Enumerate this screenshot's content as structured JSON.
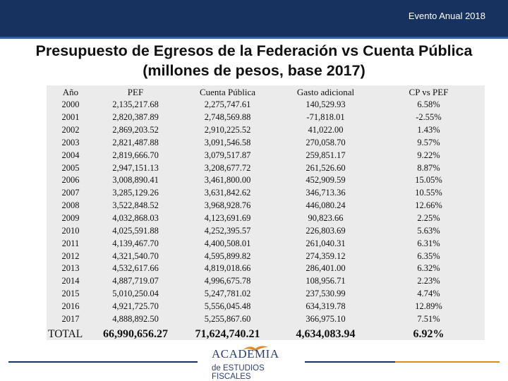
{
  "header": {
    "event_label": "Evento Anual 2018",
    "title_line1": "Presupuesto de Egresos de la Federación vs Cuenta Pública",
    "title_line2": "(millones de pesos, base 2017)"
  },
  "table": {
    "columns": [
      "Año",
      "PEF",
      "Cuenta Pública",
      "Gasto adicional",
      "CP vs PEF"
    ],
    "rows": [
      [
        "2000",
        "2,135,217.68",
        "2,275,747.61",
        "140,529.93",
        "6.58%"
      ],
      [
        "2001",
        "2,820,387.89",
        "2,748,569.88",
        "-71,818.01",
        "-2.55%"
      ],
      [
        "2002",
        "2,869,203.52",
        "2,910,225.52",
        "41,022.00",
        "1.43%"
      ],
      [
        "2003",
        "2,821,487.88",
        "3,091,546.58",
        "270,058.70",
        "9.57%"
      ],
      [
        "2004",
        "2,819,666.70",
        "3,079,517.87",
        "259,851.17",
        "9.22%"
      ],
      [
        "2005",
        "2,947,151.13",
        "3,208,677.72",
        "261,526.60",
        "8.87%"
      ],
      [
        "2006",
        "3,008,890.41",
        "3,461,800.00",
        "452,909.59",
        "15.05%"
      ],
      [
        "2007",
        "3,285,129.26",
        "3,631,842.62",
        "346,713.36",
        "10.55%"
      ],
      [
        "2008",
        "3,522,848.52",
        "3,968,928.76",
        "446,080.24",
        "12.66%"
      ],
      [
        "2009",
        "4,032,868.03",
        "4,123,691.69",
        "90,823.66",
        "2.25%"
      ],
      [
        "2010",
        "4,025,591.88",
        "4,252,395.57",
        "226,803.69",
        "5.63%"
      ],
      [
        "2011",
        "4,139,467.70",
        "4,400,508.01",
        "261,040.31",
        "6.31%"
      ],
      [
        "2012",
        "4,321,540.70",
        "4,595,899.82",
        "274,359.12",
        "6.35%"
      ],
      [
        "2013",
        "4,532,617.66",
        "4,819,018.66",
        "286,401.00",
        "6.32%"
      ],
      [
        "2014",
        "4,887,719.07",
        "4,996,675.78",
        "108,956.71",
        "2.23%"
      ],
      [
        "2015",
        "5,010,250.04",
        "5,247,781.02",
        "237,530.99",
        "4.74%"
      ],
      [
        "2016",
        "4,921,725.70",
        "5,556,045.48",
        "634,319.78",
        "12.89%"
      ],
      [
        "2017",
        "4,888,892.50",
        "5,255,867.60",
        "366,975.10",
        "7.51%"
      ]
    ],
    "total": [
      "TOTAL",
      "66,990,656.27",
      "71,624,740.21",
      "4,634,083.94",
      "6.92%"
    ]
  },
  "footer": {
    "logo_line1": "ACADEMIA",
    "logo_line2": "de ESTUDIOS FISCALES"
  },
  "colors": {
    "header_bar": "#17325f",
    "table_background": "#ebebeb",
    "footer_accent": "#e08a1e"
  }
}
